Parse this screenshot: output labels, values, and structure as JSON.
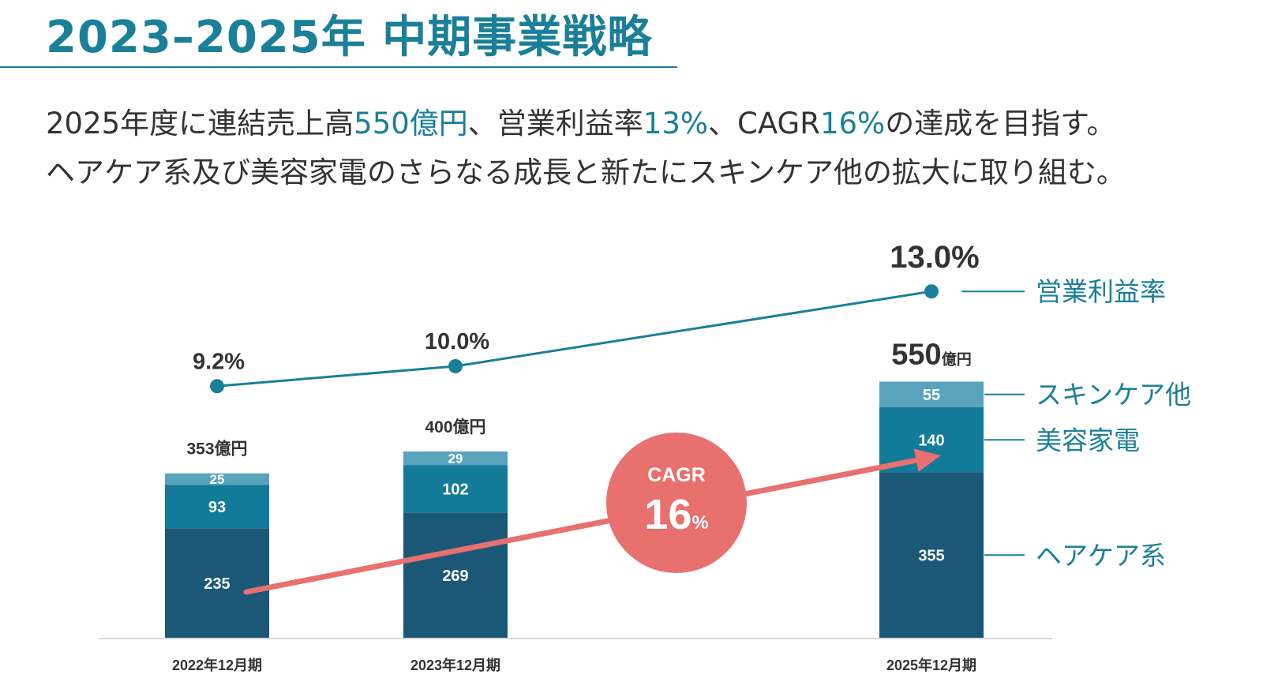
{
  "heading": {
    "title": "2023–2025年 中期事業戦略"
  },
  "summary": {
    "line1_pre": "2025年度に連結売上高",
    "line1_sales": "550億円",
    "line1_mid1": "、営業利益率",
    "line1_margin": "13%",
    "line1_mid2": "、CAGR",
    "line1_cagr": "16%",
    "line1_post": "の達成を目指す。",
    "line2": "ヘアケア系及び美容家電のさらなる成長と新たにスキンケア他の拡大に取り組む。"
  },
  "colors": {
    "accent": "#1a7f99",
    "haircare": "#1b5877",
    "beauty_appliance": "#127b99",
    "skincare": "#5aa3bd",
    "cagr": "#e8706f",
    "line": "#1a7f99"
  },
  "chart_data": {
    "type": "bar",
    "stacked": true,
    "categories": [
      "2022年12月期",
      "2023年12月期",
      "2025年12月期"
    ],
    "series": [
      {
        "name": "ヘアケア系",
        "values": [
          235,
          269,
          355
        ]
      },
      {
        "name": "美容家電",
        "values": [
          93,
          102,
          140
        ]
      },
      {
        "name": "スキンケア他",
        "values": [
          25,
          29,
          55
        ]
      }
    ],
    "totals": [
      353,
      400,
      550
    ],
    "total_labels": [
      "353",
      "400",
      "550"
    ],
    "total_unit": "億円",
    "ylim": [
      0,
      600
    ],
    "line_series": {
      "name": "営業利益率",
      "values": [
        9.2,
        10.0,
        13.0
      ],
      "labels": [
        "9.2%",
        "10.0%",
        "13.0%"
      ]
    },
    "cagr": {
      "label": "CAGR",
      "value": "16",
      "unit": "%"
    },
    "legend_placement": "right"
  }
}
